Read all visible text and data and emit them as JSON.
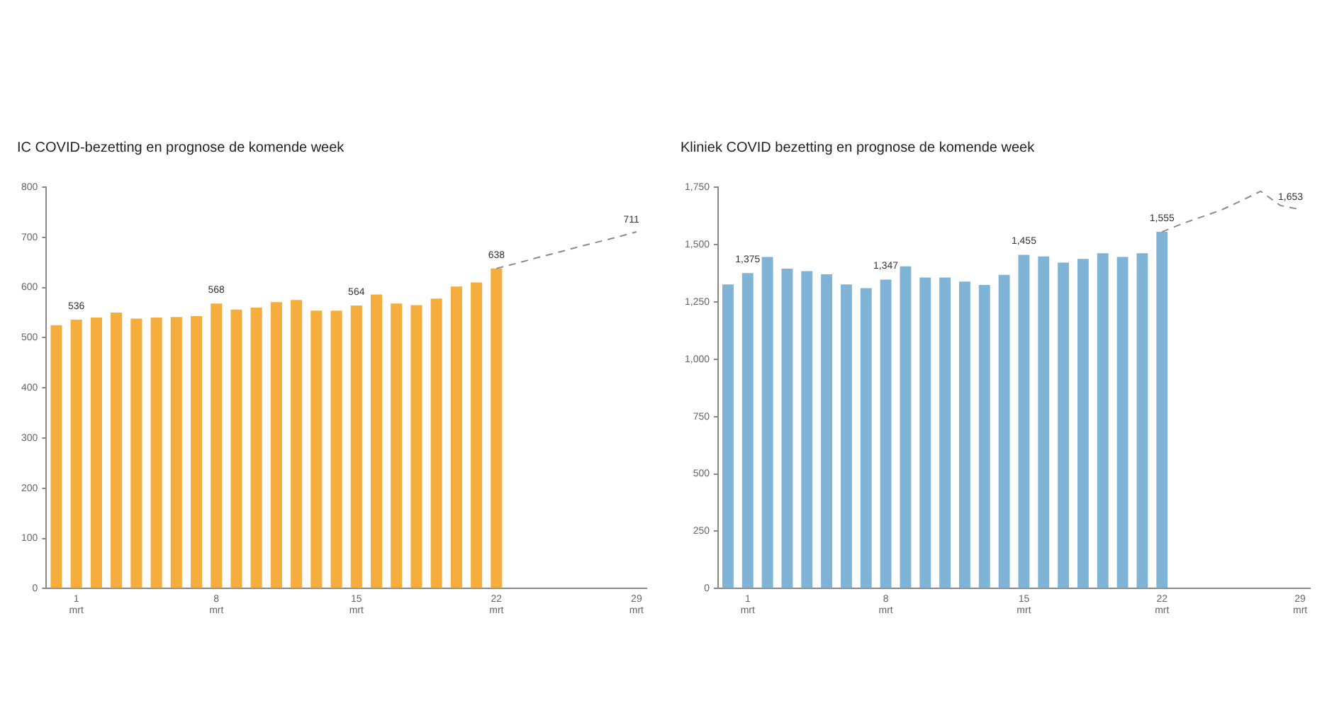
{
  "chart_data": [
    {
      "type": "bar",
      "title": "IC COVID-bezetting en prognose de komende week",
      "categories": [
        null,
        "1 mrt",
        null,
        null,
        null,
        null,
        null,
        null,
        "8 mrt",
        null,
        null,
        null,
        null,
        null,
        null,
        "15 mrt",
        null,
        null,
        null,
        null,
        null,
        null,
        "22 mrt",
        null,
        null,
        null,
        null,
        null,
        null,
        "29 mrt"
      ],
      "series": [
        {
          "color": "#f5ae3d",
          "values": [
            525,
            536,
            540,
            550,
            538,
            540,
            541,
            543,
            568,
            556,
            560,
            571,
            575,
            554,
            554,
            564,
            586,
            568,
            565,
            578,
            602,
            610,
            638,
            null,
            null,
            null,
            null,
            null,
            null,
            null
          ],
          "value_labels": [
            null,
            "536",
            null,
            null,
            null,
            null,
            null,
            null,
            "568",
            null,
            null,
            null,
            null,
            null,
            null,
            "564",
            null,
            null,
            null,
            null,
            null,
            null,
            "638",
            null,
            null,
            null,
            null,
            null,
            null,
            null
          ]
        },
        {
          "type": "line",
          "color": "#8c8c8c",
          "line_style": "dashed",
          "marker": "none",
          "values": [
            null,
            null,
            null,
            null,
            null,
            null,
            null,
            null,
            null,
            null,
            null,
            null,
            null,
            null,
            null,
            null,
            null,
            null,
            null,
            null,
            null,
            null,
            638,
            648,
            659,
            669,
            680,
            690,
            700,
            711
          ],
          "value_labels": [
            null,
            null,
            null,
            null,
            null,
            null,
            null,
            null,
            null,
            null,
            null,
            null,
            null,
            null,
            null,
            null,
            null,
            null,
            null,
            null,
            null,
            null,
            null,
            null,
            null,
            null,
            null,
            null,
            null,
            "711"
          ]
        }
      ],
      "ylim": [
        0,
        800
      ],
      "yticks": [
        0,
        100,
        200,
        300,
        400,
        500,
        600,
        700,
        800
      ],
      "grid": false,
      "legend": false
    },
    {
      "type": "bar",
      "title": "Kliniek COVID bezetting en prognose de komende week",
      "categories": [
        null,
        "1 mrt",
        null,
        null,
        null,
        null,
        null,
        null,
        "8 mrt",
        null,
        null,
        null,
        null,
        null,
        null,
        "15 mrt",
        null,
        null,
        null,
        null,
        null,
        null,
        "22 mrt",
        null,
        null,
        null,
        null,
        null,
        null,
        "29 mrt"
      ],
      "series": [
        {
          "color": "#7fb4d6",
          "values": [
            1326,
            1375,
            1446,
            1395,
            1384,
            1370,
            1326,
            1310,
            1347,
            1405,
            1356,
            1356,
            1338,
            1324,
            1368,
            1455,
            1448,
            1421,
            1437,
            1462,
            1446,
            1462,
            1555,
            null,
            null,
            null,
            null,
            null,
            null,
            null
          ],
          "value_labels": [
            null,
            "1,375",
            null,
            null,
            null,
            null,
            null,
            null,
            "1,347",
            null,
            null,
            null,
            null,
            null,
            null,
            "1,455",
            null,
            null,
            null,
            null,
            null,
            null,
            "1,555",
            null,
            null,
            null,
            null,
            null,
            null,
            null
          ]
        },
        {
          "type": "line",
          "color": "#8c8c8c",
          "line_style": "dashed",
          "marker": "none",
          "values": [
            null,
            null,
            null,
            null,
            null,
            null,
            null,
            null,
            null,
            null,
            null,
            null,
            null,
            null,
            null,
            null,
            null,
            null,
            null,
            null,
            null,
            null,
            1555,
            1590,
            1620,
            1650,
            1690,
            1732,
            1670,
            1653
          ],
          "value_labels": [
            null,
            null,
            null,
            null,
            null,
            null,
            null,
            null,
            null,
            null,
            null,
            null,
            null,
            null,
            null,
            null,
            null,
            null,
            null,
            null,
            null,
            null,
            null,
            null,
            null,
            null,
            null,
            null,
            null,
            "1,653"
          ]
        }
      ],
      "ylim": [
        0,
        1750
      ],
      "yticks": [
        0,
        {
          "value": 250,
          "label": "250"
        },
        {
          "value": 500,
          "label": "500"
        },
        {
          "value": 750,
          "label": "750"
        },
        {
          "value": 1000,
          "label": "1,000"
        },
        {
          "value": 1250,
          "label": "1,250"
        },
        {
          "value": 1500,
          "label": "1,500"
        },
        {
          "value": 1750,
          "label": "1,750"
        }
      ],
      "grid": false,
      "legend": false
    }
  ]
}
